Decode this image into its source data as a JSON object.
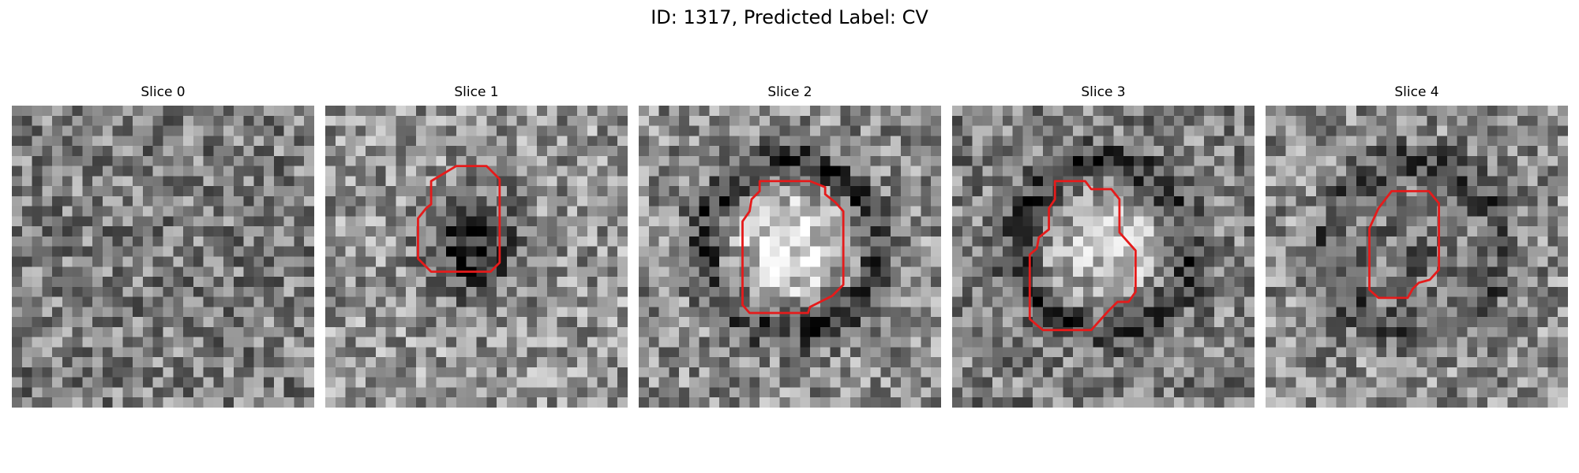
{
  "figure": {
    "title": "ID: 1317, Predicted Label: CV"
  },
  "contour_color": "#e51b1b",
  "panels": [
    {
      "title": "Slice 0",
      "seed": 11,
      "base": 0.5,
      "dark_center": 0.0,
      "bright_center": 0.0,
      "ring": 0.0,
      "has_contour": false
    },
    {
      "title": "Slice 1",
      "seed": 23,
      "base": 0.58,
      "dark_center": 0.45,
      "bright_center": 0.0,
      "ring": 0.0,
      "has_contour": true
    },
    {
      "title": "Slice 2",
      "seed": 37,
      "base": 0.55,
      "dark_center": 0.0,
      "bright_center": 0.35,
      "ring": 0.35,
      "has_contour": true
    },
    {
      "title": "Slice 3",
      "seed": 41,
      "base": 0.5,
      "dark_center": 0.0,
      "bright_center": 0.3,
      "ring": 0.3,
      "has_contour": true
    },
    {
      "title": "Slice 4",
      "seed": 59,
      "base": 0.55,
      "dark_center": 0.15,
      "bright_center": 0.0,
      "ring": 0.25,
      "has_contour": true
    }
  ]
}
